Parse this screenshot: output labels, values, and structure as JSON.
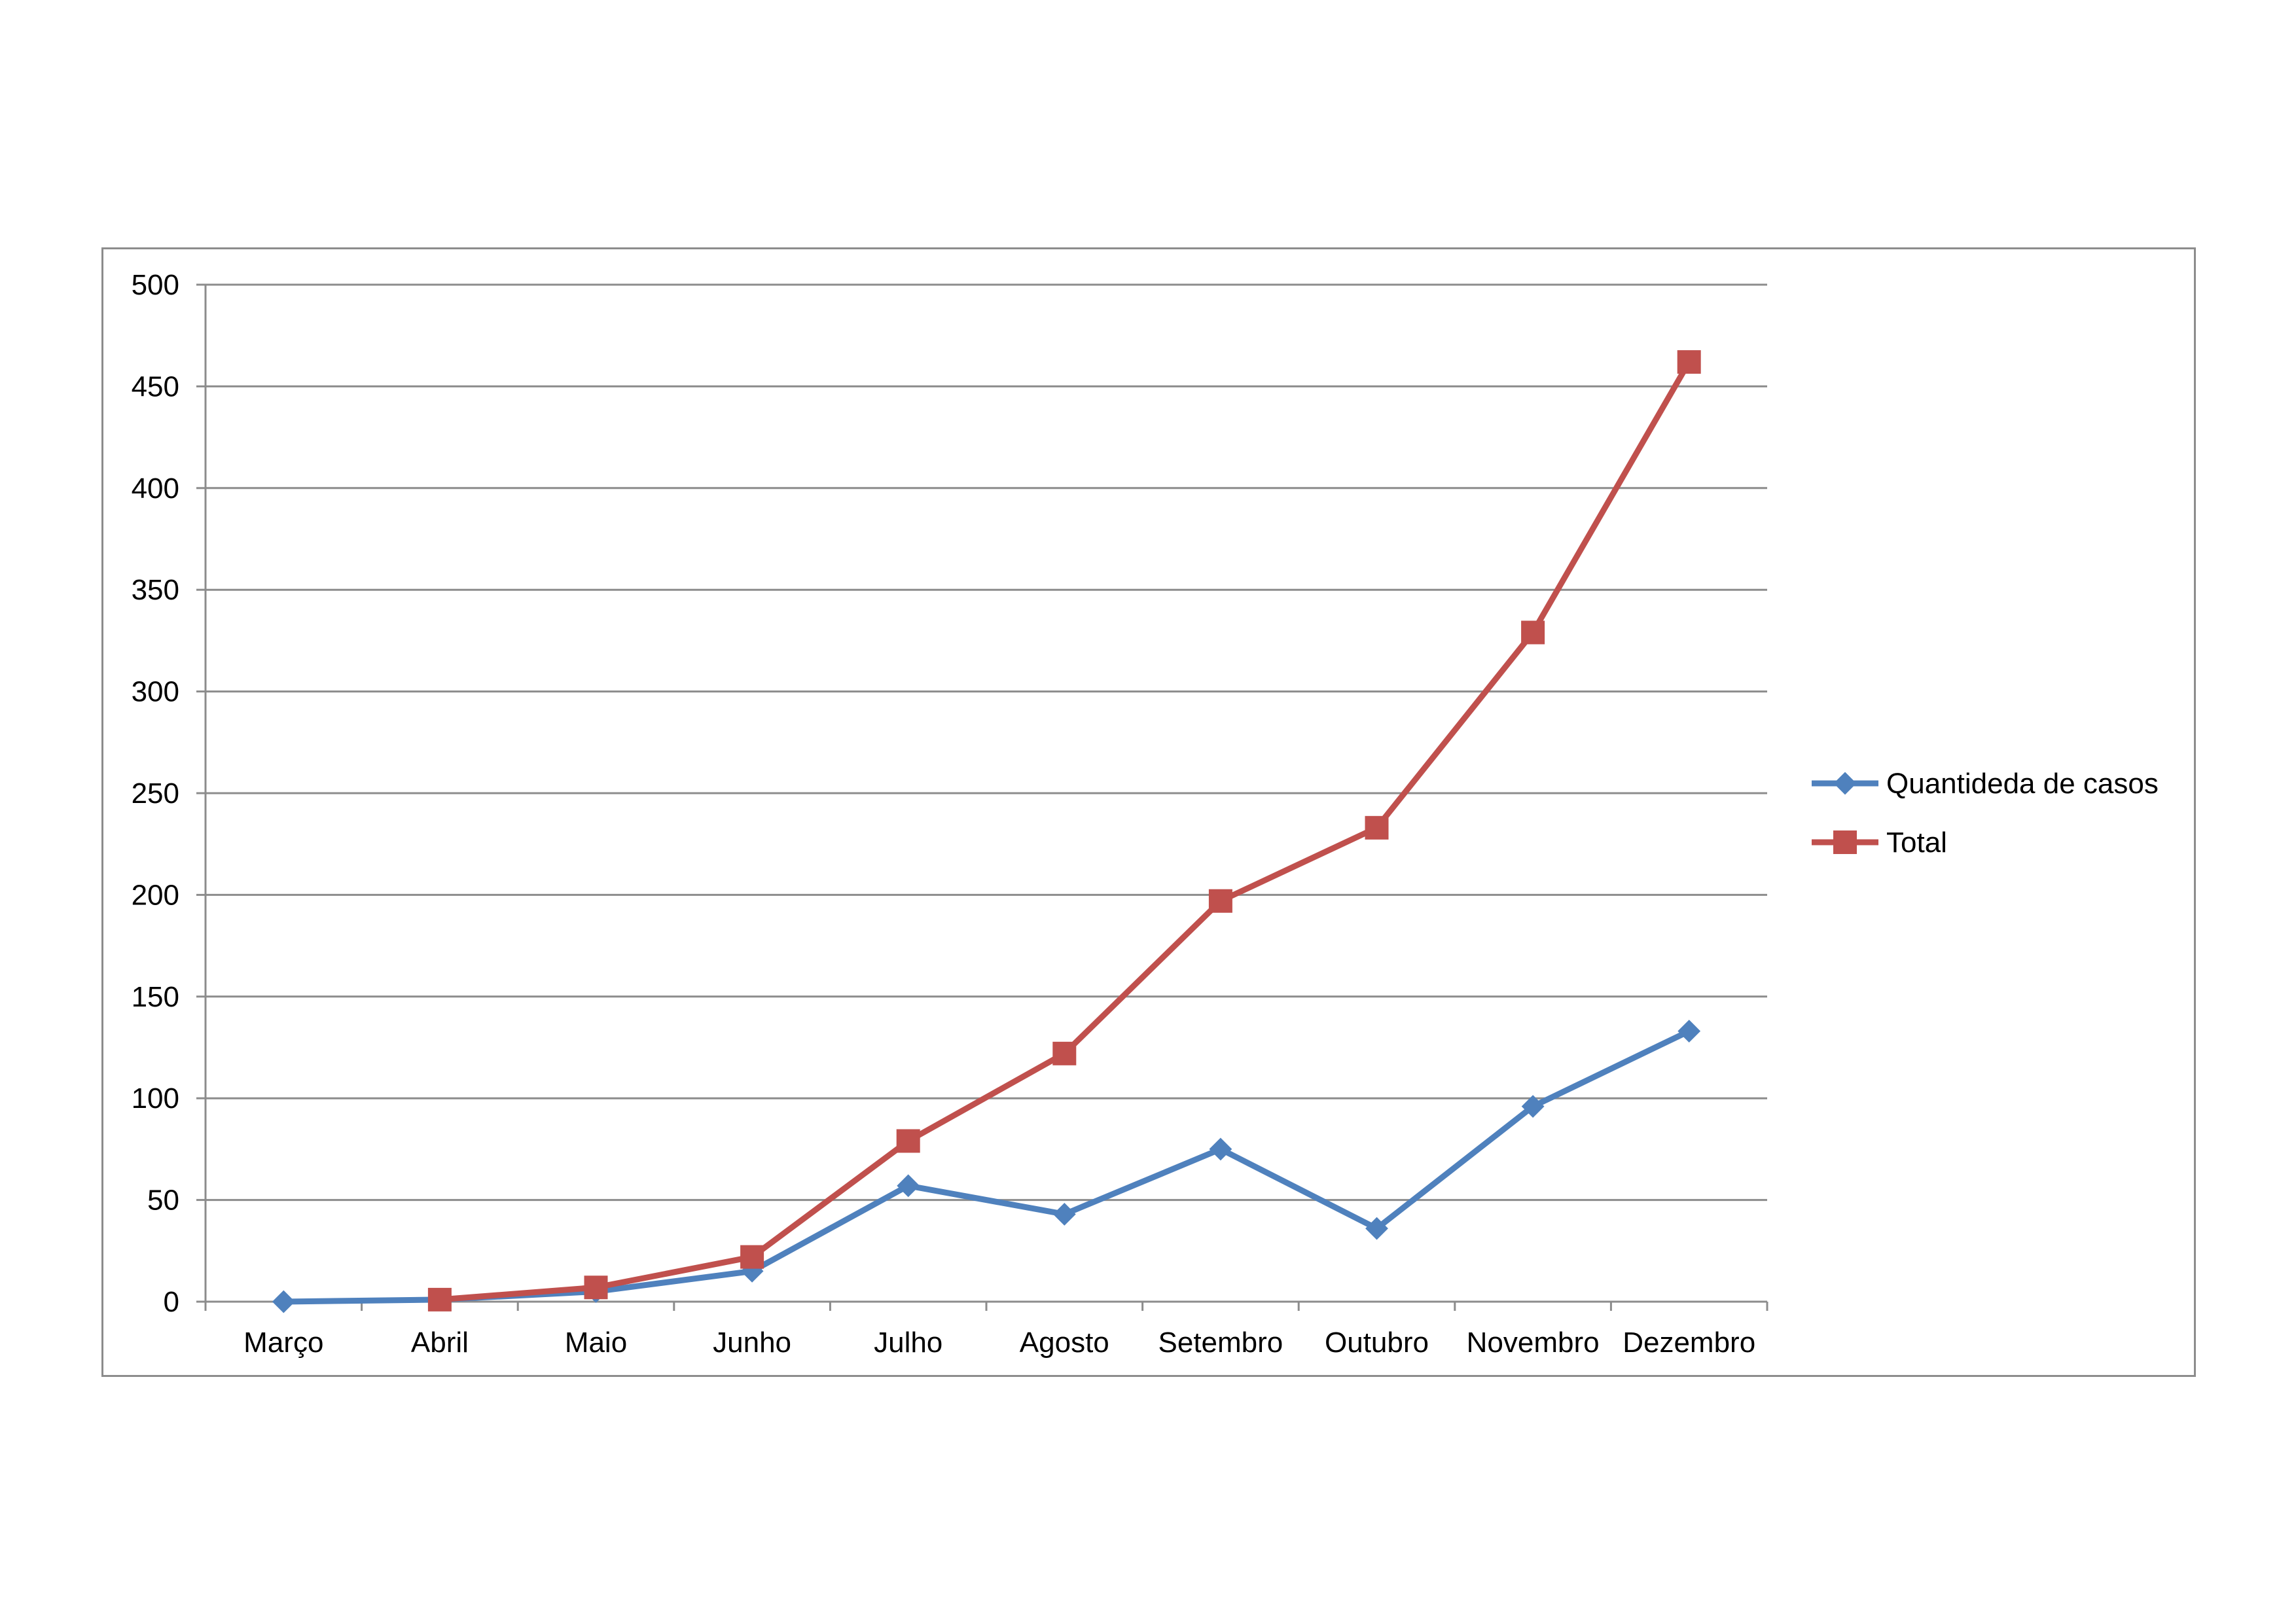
{
  "chart_data": {
    "type": "line",
    "title": "",
    "xlabel": "",
    "ylabel": "",
    "categories": [
      "Março",
      "Abril",
      "Maio",
      "Junho",
      "Julho",
      "Agosto",
      "Setembro",
      "Outubro",
      "Novembro",
      "Dezembro"
    ],
    "ylim": [
      0,
      500
    ],
    "yticks": [
      0,
      50,
      100,
      150,
      200,
      250,
      300,
      350,
      400,
      450,
      500
    ],
    "grid": "horizontal",
    "legend_position": "right",
    "series": [
      {
        "name": "Quantideda de casos",
        "color": "#4F81BD",
        "marker": "diamond",
        "values": [
          0,
          1,
          5,
          15,
          57,
          43,
          75,
          36,
          96,
          133
        ]
      },
      {
        "name": "Total",
        "color": "#C0504D",
        "marker": "square",
        "values": [
          null,
          1,
          7,
          22,
          79,
          122,
          197,
          233,
          329,
          462
        ]
      }
    ]
  }
}
